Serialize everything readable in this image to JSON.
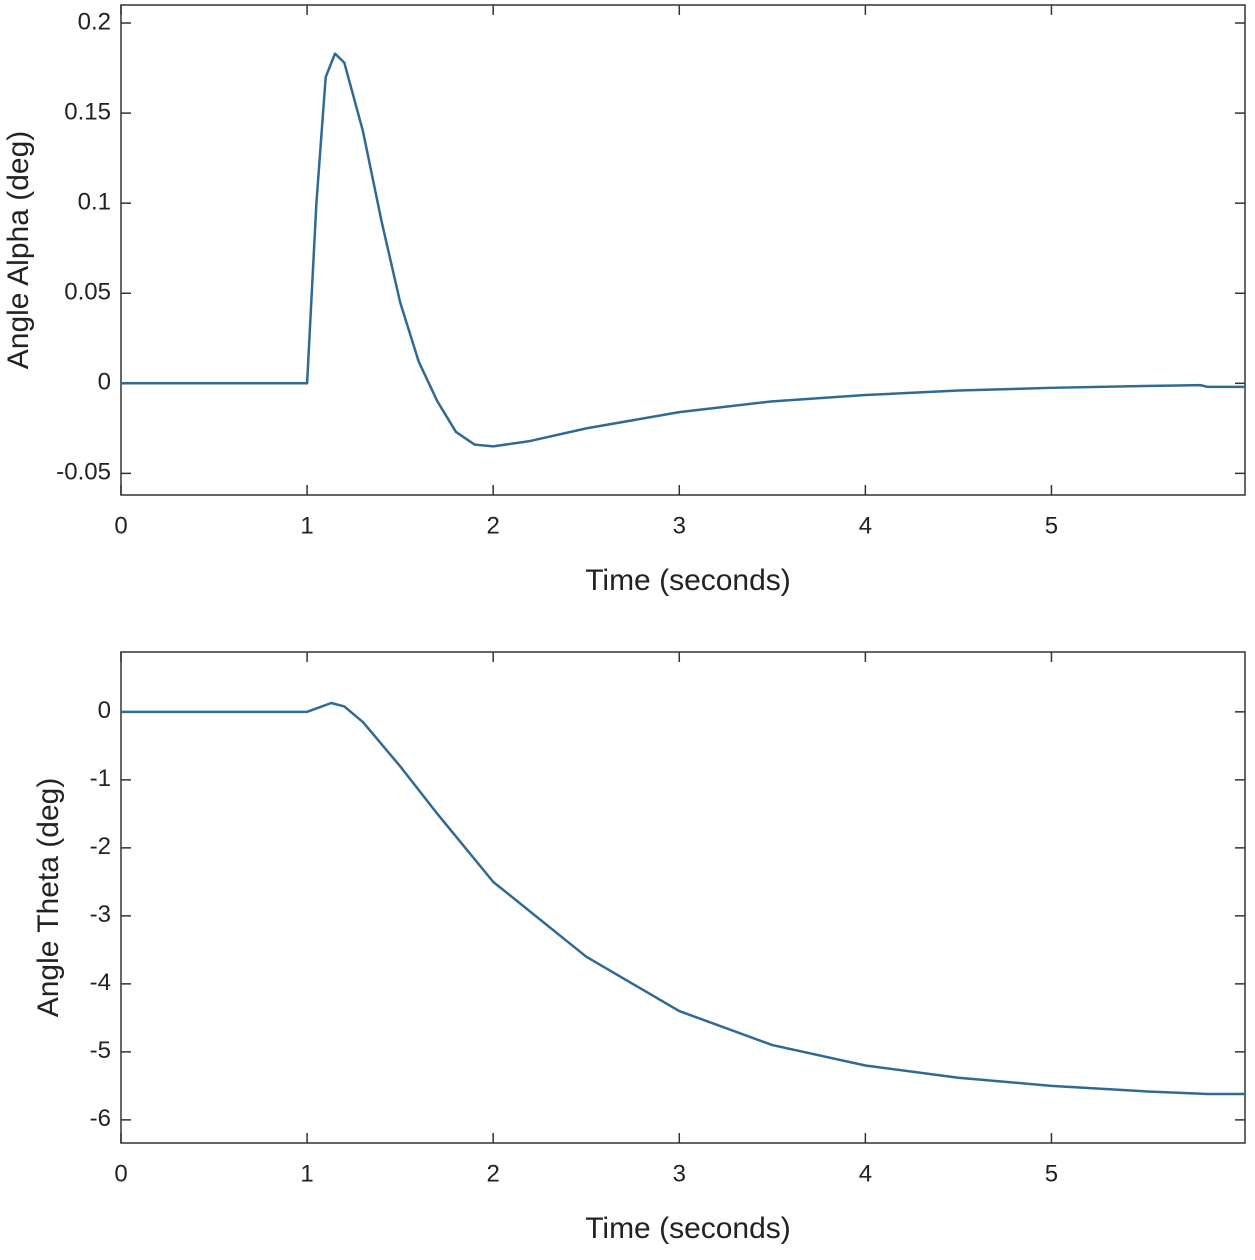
{
  "chart_data": [
    {
      "type": "line",
      "xlabel": "Time (seconds)",
      "ylabel": "Angle Alpha (deg)",
      "x": [
        0,
        0.5,
        1.0,
        1.05,
        1.1,
        1.15,
        1.2,
        1.3,
        1.4,
        1.5,
        1.6,
        1.7,
        1.8,
        1.9,
        2.0,
        2.2,
        2.5,
        3.0,
        3.5,
        4.0,
        4.5,
        5.0,
        5.5,
        5.8,
        5.84,
        6.04
      ],
      "series": [
        {
          "color": "#2f6a94",
          "values": [
            0,
            0,
            0,
            0.1,
            0.17,
            0.183,
            0.178,
            0.14,
            0.09,
            0.045,
            0.012,
            -0.01,
            -0.027,
            -0.034,
            -0.035,
            -0.032,
            -0.025,
            -0.016,
            -0.01,
            -0.0065,
            -0.004,
            -0.0025,
            -0.0015,
            -0.001,
            -0.002,
            -0.002
          ]
        }
      ],
      "xlim": [
        0,
        6.04
      ],
      "xticks": [
        0,
        1,
        2,
        3,
        4,
        5
      ],
      "ylim": [
        -0.062,
        0.21
      ],
      "yticks": [
        -0.05,
        0,
        0.05,
        0.1,
        0.15,
        0.2
      ],
      "grid": false
    },
    {
      "type": "line",
      "xlabel": "Time (seconds)",
      "ylabel": "Angle Theta (deg)",
      "x": [
        0,
        0.5,
        1.0,
        1.05,
        1.13,
        1.2,
        1.3,
        1.5,
        1.7,
        2.0,
        2.5,
        3.0,
        3.5,
        4.0,
        4.5,
        5.0,
        5.5,
        5.84,
        6.04
      ],
      "series": [
        {
          "color": "#2f6a94",
          "values": [
            0,
            0,
            0,
            0.05,
            0.13,
            0.08,
            -0.15,
            -0.8,
            -1.5,
            -2.5,
            -3.6,
            -4.4,
            -4.9,
            -5.2,
            -5.38,
            -5.5,
            -5.58,
            -5.62,
            -5.62
          ]
        }
      ],
      "xlim": [
        0,
        6.04
      ],
      "xticks": [
        0,
        1,
        2,
        3,
        4,
        5
      ],
      "ylim": [
        -6.34,
        0.88
      ],
      "yticks": [
        -6,
        -5,
        -4,
        -3,
        -2,
        -1,
        0
      ],
      "grid": false
    }
  ]
}
